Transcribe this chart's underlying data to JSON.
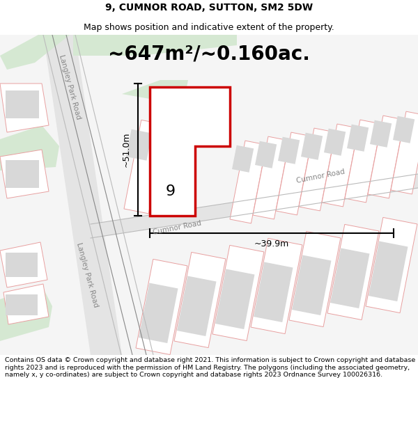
{
  "title": "9, CUMNOR ROAD, SUTTON, SM2 5DW",
  "subtitle": "Map shows position and indicative extent of the property.",
  "area_label": "~647m²/~0.160ac.",
  "width_label": "~39.9m",
  "height_label": "~51.0m",
  "number_label": "9",
  "footer": "Contains OS data © Crown copyright and database right 2021. This information is subject to Crown copyright and database rights 2023 and is reproduced with the permission of HM Land Registry. The polygons (including the associated geometry, namely x, y co-ordinates) are subject to Crown copyright and database rights 2023 Ordnance Survey 100026316.",
  "bg_color": "#ffffff",
  "map_bg": "#f8f8f8",
  "road_fill": "#e4e4e4",
  "green_fill": "#d5e8d2",
  "plot_color": "#cc0000",
  "plot_fill": "#ffffff",
  "other_plot_color": "#e8a0a0",
  "bldg_fill": "#d8d8d8",
  "footer_bg": "#ffffff",
  "title_fontsize": 10,
  "subtitle_fontsize": 9,
  "area_fontsize": 20,
  "label_fontsize": 9,
  "footer_fontsize": 6.8,
  "road_label_color": "#888888",
  "road_label_size": 7.5
}
